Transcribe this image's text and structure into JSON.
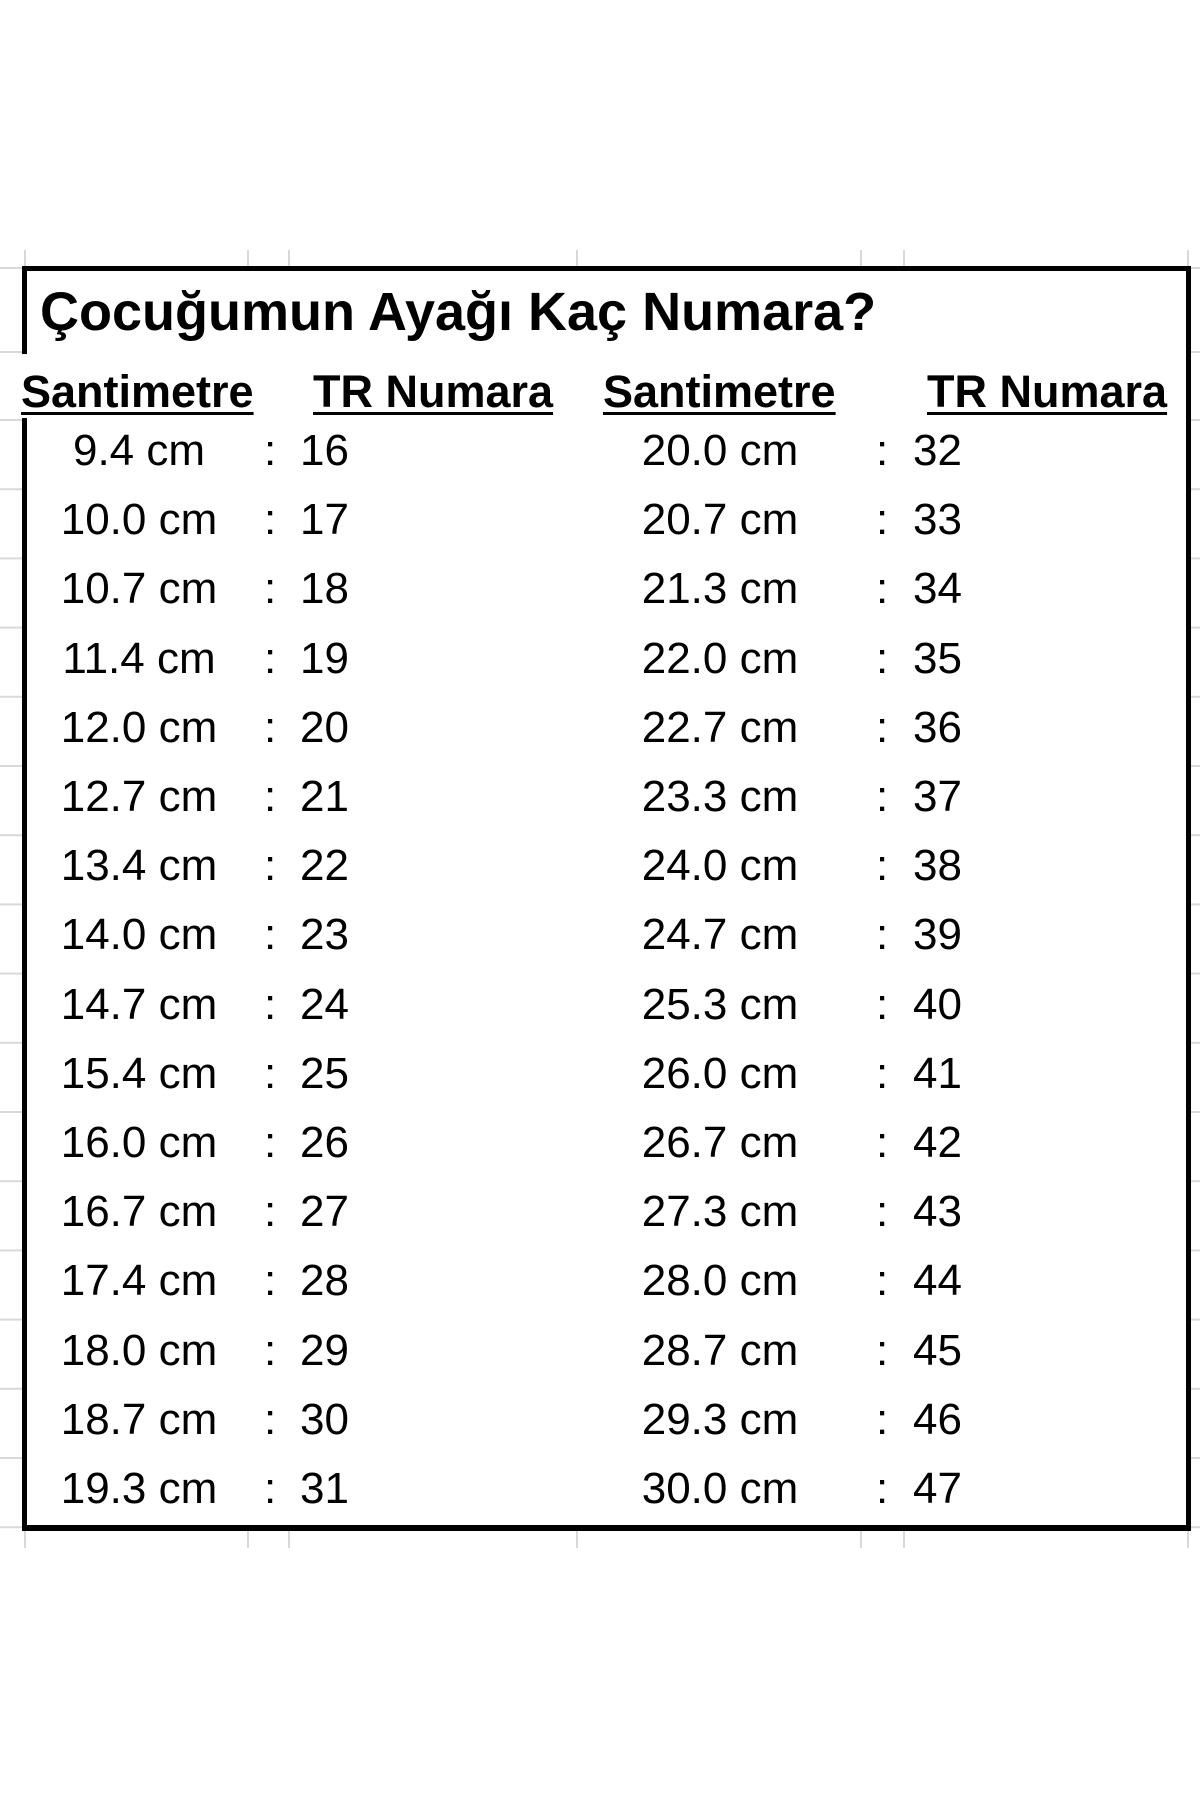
{
  "title": "Çocuğumun Ayağı Kaç Numara?",
  "headers": [
    "Santimetre",
    "TR Numara",
    "Santimetre",
    "TR Numara"
  ],
  "separator": ":",
  "left_rows": [
    {
      "cm": "9.4 cm",
      "tr": "16"
    },
    {
      "cm": "10.0 cm",
      "tr": "17"
    },
    {
      "cm": "10.7 cm",
      "tr": "18"
    },
    {
      "cm": "11.4 cm",
      "tr": "19"
    },
    {
      "cm": "12.0 cm",
      "tr": "20"
    },
    {
      "cm": "12.7 cm",
      "tr": "21"
    },
    {
      "cm": "13.4 cm",
      "tr": "22"
    },
    {
      "cm": "14.0 cm",
      "tr": "23"
    },
    {
      "cm": "14.7 cm",
      "tr": "24"
    },
    {
      "cm": "15.4 cm",
      "tr": "25"
    },
    {
      "cm": "16.0 cm",
      "tr": "26"
    },
    {
      "cm": "16.7 cm",
      "tr": "27"
    },
    {
      "cm": "17.4 cm",
      "tr": "28"
    },
    {
      "cm": "18.0 cm",
      "tr": "29"
    },
    {
      "cm": "18.7 cm",
      "tr": "30"
    },
    {
      "cm": "19.3 cm",
      "tr": "31"
    }
  ],
  "right_rows": [
    {
      "cm": "20.0 cm",
      "tr": "32"
    },
    {
      "cm": "20.7 cm",
      "tr": "33"
    },
    {
      "cm": "21.3 cm",
      "tr": "34"
    },
    {
      "cm": "22.0 cm",
      "tr": "35"
    },
    {
      "cm": "22.7 cm",
      "tr": "36"
    },
    {
      "cm": "23.3 cm",
      "tr": "37"
    },
    {
      "cm": "24.0 cm",
      "tr": "38"
    },
    {
      "cm": "24.7 cm",
      "tr": "39"
    },
    {
      "cm": "25.3 cm",
      "tr": "40"
    },
    {
      "cm": "26.0 cm",
      "tr": "41"
    },
    {
      "cm": "26.7 cm",
      "tr": "42"
    },
    {
      "cm": "27.3 cm",
      "tr": "43"
    },
    {
      "cm": "28.0 cm",
      "tr": "44"
    },
    {
      "cm": "28.7 cm",
      "tr": "45"
    },
    {
      "cm": "29.3 cm",
      "tr": "46"
    },
    {
      "cm": "30.0 cm",
      "tr": "47"
    }
  ],
  "colors": {
    "border": "#000000",
    "gridline": "#d9d9d9"
  }
}
